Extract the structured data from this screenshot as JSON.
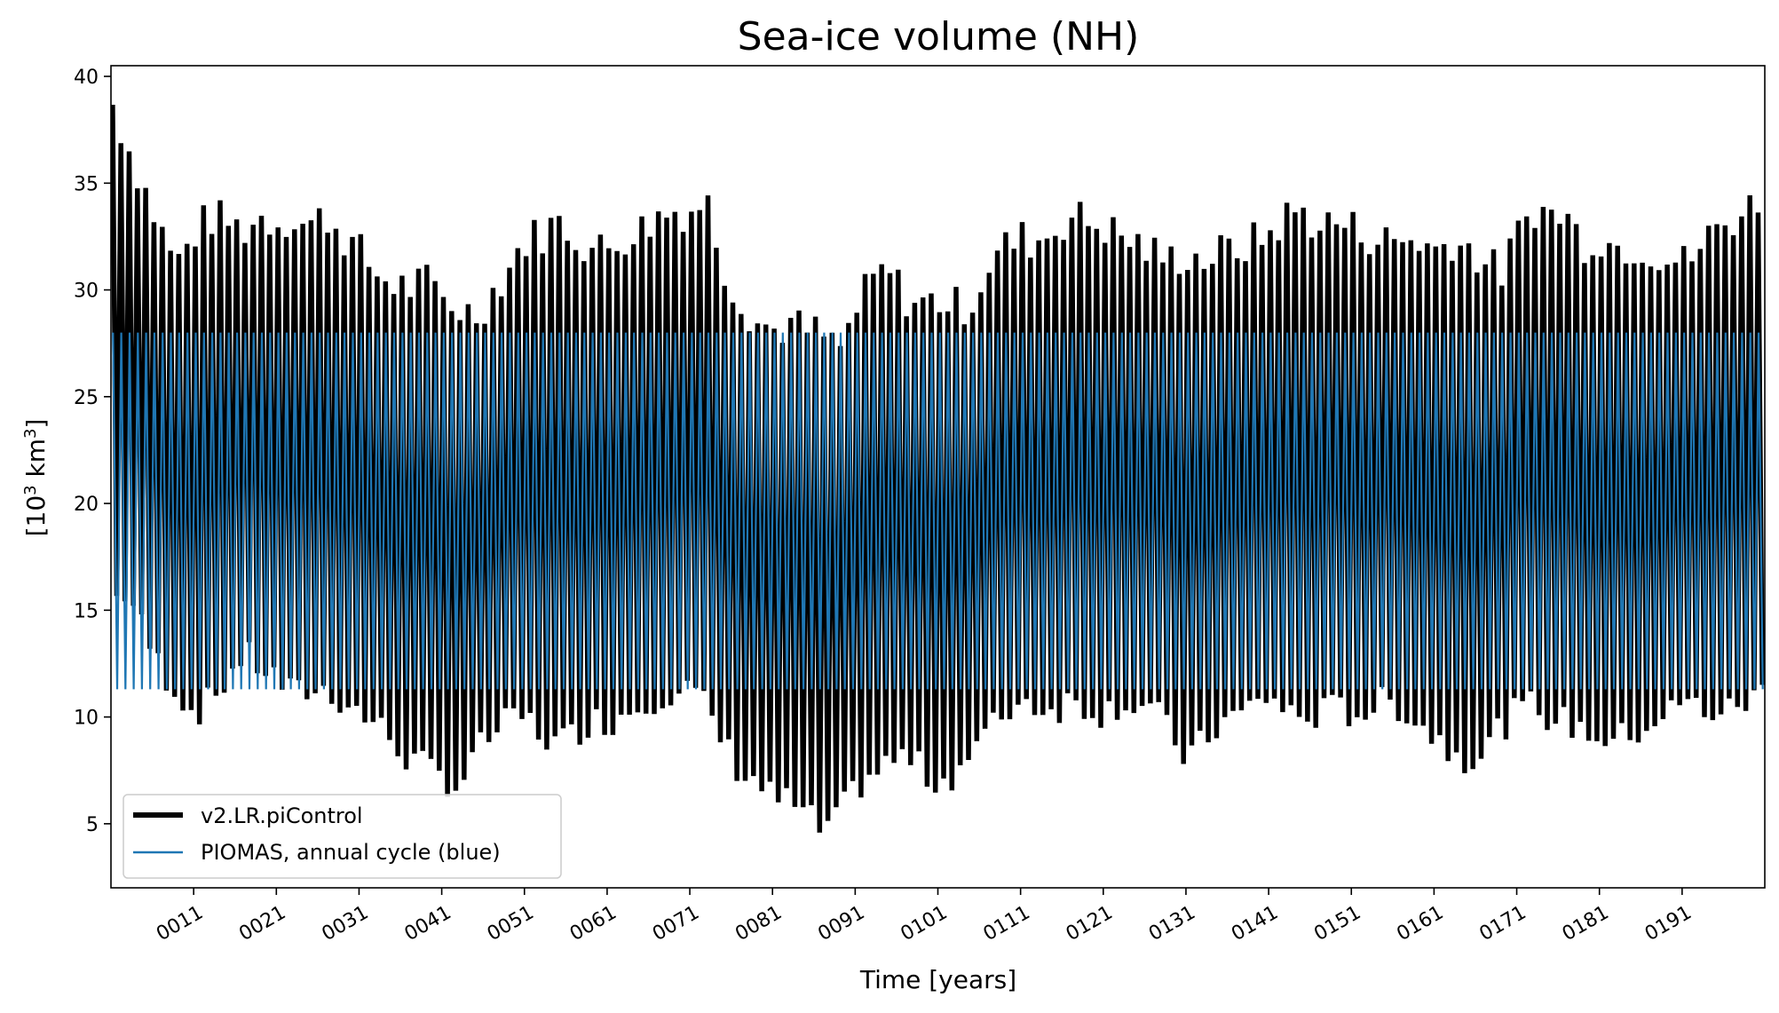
{
  "chart_data": {
    "type": "line",
    "title": "Sea-ice volume (NH)",
    "xlabel": "Time [years]",
    "ylabel_prefix": "[10",
    "ylabel_exp1": "3",
    "ylabel_mid": " km",
    "ylabel_exp2": "3",
    "ylabel_suffix": "]",
    "xlim": [
      1,
      201
    ],
    "ylim": [
      2,
      40.5
    ],
    "xticks": [
      11,
      21,
      31,
      41,
      51,
      61,
      71,
      81,
      91,
      101,
      111,
      121,
      131,
      141,
      151,
      161,
      171,
      181,
      191
    ],
    "xtick_labels": [
      "0011",
      "0021",
      "0031",
      "0041",
      "0051",
      "0061",
      "0071",
      "0081",
      "0091",
      "0101",
      "0111",
      "0121",
      "0131",
      "0141",
      "0151",
      "0161",
      "0171",
      "0181",
      "0191"
    ],
    "yticks": [
      5,
      10,
      15,
      20,
      25,
      30,
      35,
      40
    ],
    "ytick_labels": [
      "5",
      "10",
      "15",
      "20",
      "25",
      "30",
      "35",
      "40"
    ],
    "grid": false,
    "legend": {
      "placement": "lower-left",
      "entries": [
        "v2.LR.piControl",
        "PIOMAS, annual cycle (blue)"
      ]
    },
    "series": [
      {
        "name": "v2.LR.piControl",
        "color": "#000000",
        "description": "monthly, annual maxima/minima per year",
        "x": [
          1,
          3,
          5,
          7,
          9,
          11,
          13,
          15,
          17,
          19,
          21,
          23,
          25,
          27,
          29,
          31,
          33,
          35,
          37,
          39,
          41,
          43,
          45,
          47,
          49,
          51,
          53,
          55,
          57,
          59,
          61,
          63,
          65,
          67,
          69,
          71,
          73,
          75,
          77,
          79,
          81,
          83,
          85,
          87,
          89,
          91,
          93,
          95,
          97,
          99,
          101,
          103,
          105,
          107,
          109,
          111,
          113,
          115,
          117,
          119,
          121,
          123,
          125,
          127,
          129,
          131,
          133,
          135,
          137,
          139,
          141,
          143,
          145,
          147,
          149,
          151,
          153,
          155,
          157,
          159,
          161,
          163,
          165,
          167,
          169,
          171,
          173,
          175,
          177,
          179,
          181,
          183,
          185,
          187,
          189,
          191,
          193,
          195,
          197,
          199,
          201
        ],
        "annual_max": [
          38.9,
          36.8,
          34.8,
          32.8,
          31.2,
          32.6,
          33.4,
          33.2,
          32.8,
          33.4,
          33.2,
          33.4,
          33.0,
          33.5,
          32.6,
          31.8,
          30.8,
          30.3,
          30.1,
          30.4,
          29.6,
          29.2,
          28.8,
          29.8,
          31.0,
          32.3,
          32.6,
          33.2,
          32.6,
          31.9,
          31.9,
          32.5,
          32.8,
          33.4,
          33.7,
          33.7,
          34.3,
          31.2,
          29.6,
          28.6,
          28.1,
          28.4,
          28.1,
          27.9,
          27.1,
          28.9,
          30.4,
          30.9,
          29.7,
          29.3,
          29.6,
          29.2,
          29.4,
          31.1,
          32.0,
          32.4,
          32.3,
          32.8,
          33.5,
          33.2,
          33.0,
          32.5,
          32.2,
          31.7,
          31.4,
          31.7,
          31.4,
          31.7,
          31.9,
          32.2,
          32.6,
          33.4,
          33.7,
          33.0,
          33.2,
          32.9,
          32.6,
          32.3,
          32.3,
          32.4,
          31.8,
          32.4,
          32.0,
          31.4,
          30.7,
          32.4,
          33.9,
          33.5,
          33.5,
          32.2,
          32.5,
          32.0,
          32.1,
          31.9,
          31.6,
          31.2,
          31.9,
          32.8,
          33.3,
          33.8,
          34.5
        ],
        "annual_min": [
          15.4,
          15.9,
          13.9,
          12.3,
          11.2,
          10.2,
          10.7,
          11.8,
          12.9,
          12.4,
          11.8,
          11.0,
          11.3,
          11.2,
          10.8,
          10.2,
          9.7,
          8.9,
          8.0,
          7.6,
          7.2,
          6.7,
          8.2,
          9.2,
          9.7,
          10.0,
          9.2,
          8.7,
          9.2,
          9.9,
          9.7,
          10.2,
          10.6,
          11.0,
          11.2,
          11.3,
          10.4,
          8.8,
          7.5,
          7.0,
          6.2,
          6.0,
          5.4,
          4.6,
          5.2,
          6.7,
          7.3,
          7.8,
          8.2,
          7.5,
          6.9,
          7.4,
          8.3,
          9.2,
          10.2,
          10.8,
          10.6,
          10.3,
          10.8,
          10.5,
          10.2,
          10.7,
          10.6,
          10.4,
          9.2,
          8.1,
          8.7,
          9.7,
          10.0,
          10.5,
          11.0,
          10.3,
          9.9,
          10.1,
          10.4,
          10.2,
          10.3,
          10.7,
          10.5,
          9.8,
          9.1,
          8.5,
          8.1,
          8.4,
          9.5,
          10.2,
          10.6,
          10.0,
          9.7,
          9.4,
          9.1,
          8.9,
          9.2,
          9.7,
          10.1,
          10.6,
          10.5,
          10.2,
          10.3,
          10.8,
          11.2
        ]
      },
      {
        "name": "PIOMAS, annual cycle (blue)",
        "color": "#1f77b4",
        "description": "repeating annual cycle",
        "cycle_max": 28.0,
        "cycle_min": 11.3,
        "x_range": [
          1,
          201
        ]
      }
    ]
  }
}
